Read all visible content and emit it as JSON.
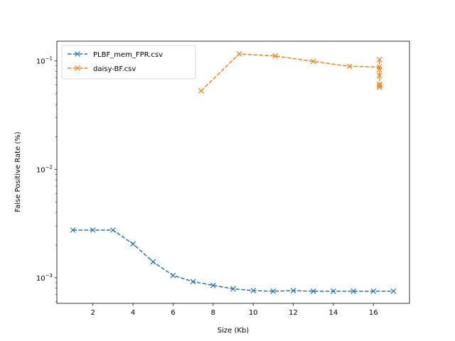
{
  "chart_data": {
    "type": "line",
    "title": "",
    "xlabel": "Size (Kb)",
    "ylabel": "False Positive Rate (%)",
    "xlim": [
      0.2,
      17.8
    ],
    "ylim": [
      0.00058,
      0.152
    ],
    "yscale": "log",
    "grid": false,
    "legend_position": "top-left",
    "x_ticks": [
      2,
      4,
      6,
      8,
      10,
      12,
      14,
      16
    ],
    "x_tick_labels": [
      "2",
      "4",
      "6",
      "8",
      "10",
      "12",
      "14",
      "16"
    ],
    "y_ticks": [
      0.001,
      0.01,
      0.1
    ],
    "y_tick_labels": [
      {
        "base": "10",
        "exp": "−3"
      },
      {
        "base": "10",
        "exp": "−2"
      },
      {
        "base": "10",
        "exp": "−1"
      }
    ],
    "series": [
      {
        "name": "PLBF_mem_FPR.csv",
        "color": "#1f77b4",
        "marker": "x",
        "linestyle": "dashed",
        "x": [
          1,
          2,
          3,
          4,
          5,
          6,
          7,
          8,
          9,
          10,
          11,
          12,
          13,
          14,
          15,
          16,
          17
        ],
        "y": [
          0.00275,
          0.00275,
          0.00275,
          0.00205,
          0.0014,
          0.00105,
          0.00092,
          0.00085,
          0.00079,
          0.00076,
          0.00075,
          0.00076,
          0.00075,
          0.00075,
          0.00075,
          0.00075,
          0.00075
        ]
      },
      {
        "name": "daisy-BF.csv",
        "color": "#ff7f0e",
        "marker": "x",
        "linestyle": "dashed",
        "x": [
          7.4,
          9.3,
          11.1,
          13.0,
          14.8,
          16.3,
          16.3,
          16.3,
          16.3,
          16.3,
          16.3,
          16.3
        ],
        "y": [
          0.053,
          0.116,
          0.111,
          0.099,
          0.089,
          0.088,
          0.103,
          0.083,
          0.073,
          0.061,
          0.059,
          0.057
        ]
      }
    ]
  }
}
